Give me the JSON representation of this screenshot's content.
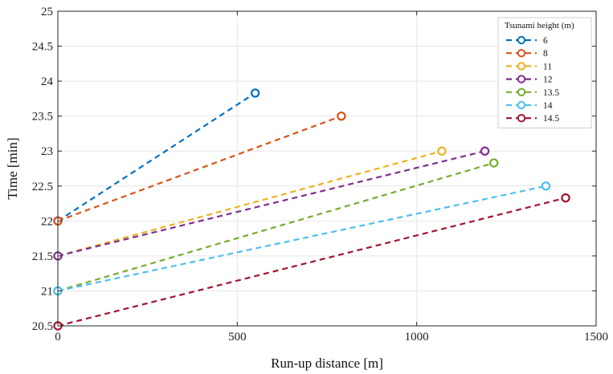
{
  "chart_data": {
    "type": "line",
    "xlabel": "Run-up distance [m]",
    "ylabel": "Time [min]",
    "xlim": [
      0,
      1500
    ],
    "ylim": [
      20.5,
      25
    ],
    "xticks": [
      0,
      500,
      1000,
      1500
    ],
    "yticks": [
      20.5,
      21,
      21.5,
      22,
      22.5,
      23,
      23.5,
      24,
      24.5,
      25
    ],
    "grid": true,
    "legend": {
      "title": "Tsunami height (m)",
      "position": "top-right"
    },
    "series": [
      {
        "name": "6",
        "color": "#0072BD",
        "x": [
          0,
          550
        ],
        "y": [
          22.0,
          23.83
        ]
      },
      {
        "name": "8",
        "color": "#D95319",
        "x": [
          0,
          790
        ],
        "y": [
          22.0,
          23.5
        ]
      },
      {
        "name": "11",
        "color": "#EDB120",
        "x": [
          0,
          1070
        ],
        "y": [
          21.5,
          23.0
        ]
      },
      {
        "name": "12",
        "color": "#7E2F8E",
        "x": [
          0,
          1190
        ],
        "y": [
          21.5,
          23.0
        ]
      },
      {
        "name": "13.5",
        "color": "#77AC30",
        "x": [
          0,
          1215
        ],
        "y": [
          21.0,
          22.83
        ]
      },
      {
        "name": "14",
        "color": "#4DBEEE",
        "x": [
          0,
          1360
        ],
        "y": [
          21.0,
          22.5
        ]
      },
      {
        "name": "14.5",
        "color": "#A2142F",
        "x": [
          0,
          1415
        ],
        "y": [
          20.5,
          22.33
        ]
      }
    ]
  }
}
